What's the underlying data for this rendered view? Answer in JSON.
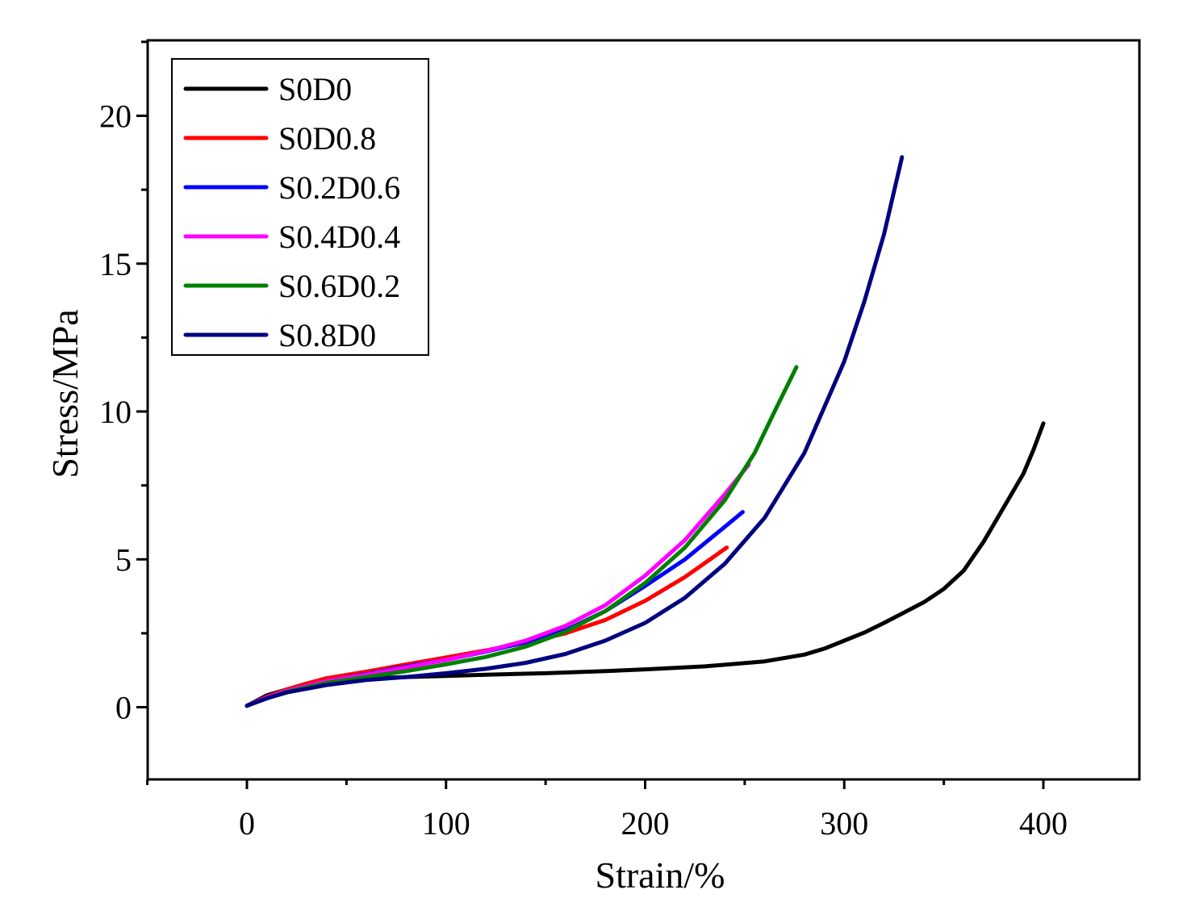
{
  "chart_data": {
    "type": "line",
    "xlabel": "Strain/%",
    "ylabel": "Stress/MPa",
    "xlim": [
      -50,
      450
    ],
    "ylim": [
      -2.4,
      22.5
    ],
    "x_ticks": [
      0,
      100,
      200,
      300,
      400
    ],
    "y_ticks": [
      0,
      5,
      10,
      15,
      20
    ],
    "x_tick_labels": [
      "0",
      "100",
      "200",
      "300",
      "400"
    ],
    "y_tick_labels": [
      "0",
      "5",
      "10",
      "15",
      "20"
    ],
    "grid": false,
    "legend_position": "top-left",
    "series": [
      {
        "name": "S0D0",
        "color": "#000000",
        "points": [
          [
            0,
            0.05
          ],
          [
            10,
            0.4
          ],
          [
            20,
            0.6
          ],
          [
            30,
            0.75
          ],
          [
            40,
            0.85
          ],
          [
            50,
            0.92
          ],
          [
            60,
            0.97
          ],
          [
            80,
            1.02
          ],
          [
            100,
            1.06
          ],
          [
            120,
            1.1
          ],
          [
            150,
            1.15
          ],
          [
            180,
            1.22
          ],
          [
            200,
            1.28
          ],
          [
            230,
            1.38
          ],
          [
            260,
            1.55
          ],
          [
            280,
            1.78
          ],
          [
            290,
            1.98
          ],
          [
            300,
            2.25
          ],
          [
            310,
            2.52
          ],
          [
            320,
            2.85
          ],
          [
            330,
            3.2
          ],
          [
            340,
            3.55
          ],
          [
            350,
            4.0
          ],
          [
            360,
            4.62
          ],
          [
            370,
            5.6
          ],
          [
            380,
            6.75
          ],
          [
            390,
            7.9
          ],
          [
            395,
            8.7
          ],
          [
            400,
            9.6
          ]
        ]
      },
      {
        "name": "S0D0.8",
        "color": "#ff0000",
        "points": [
          [
            0,
            0.05
          ],
          [
            10,
            0.35
          ],
          [
            20,
            0.6
          ],
          [
            30,
            0.8
          ],
          [
            40,
            0.98
          ],
          [
            60,
            1.2
          ],
          [
            80,
            1.45
          ],
          [
            100,
            1.68
          ],
          [
            120,
            1.92
          ],
          [
            140,
            2.18
          ],
          [
            160,
            2.5
          ],
          [
            180,
            2.95
          ],
          [
            200,
            3.6
          ],
          [
            220,
            4.4
          ],
          [
            241,
            5.4
          ]
        ]
      },
      {
        "name": "S0.2D0.6",
        "color": "#0000ff",
        "points": [
          [
            0,
            0.05
          ],
          [
            10,
            0.33
          ],
          [
            20,
            0.55
          ],
          [
            40,
            0.88
          ],
          [
            60,
            1.12
          ],
          [
            80,
            1.38
          ],
          [
            100,
            1.6
          ],
          [
            120,
            1.88
          ],
          [
            140,
            2.2
          ],
          [
            160,
            2.6
          ],
          [
            180,
            3.25
          ],
          [
            200,
            4.1
          ],
          [
            220,
            5.0
          ],
          [
            240,
            6.1
          ],
          [
            249,
            6.6
          ]
        ]
      },
      {
        "name": "S0.4D0.4",
        "color": "#ff00ff",
        "points": [
          [
            0,
            0.05
          ],
          [
            10,
            0.33
          ],
          [
            20,
            0.55
          ],
          [
            40,
            0.88
          ],
          [
            60,
            1.1
          ],
          [
            80,
            1.35
          ],
          [
            100,
            1.6
          ],
          [
            120,
            1.9
          ],
          [
            140,
            2.25
          ],
          [
            160,
            2.75
          ],
          [
            180,
            3.45
          ],
          [
            200,
            4.45
          ],
          [
            220,
            5.65
          ],
          [
            240,
            7.2
          ],
          [
            252,
            8.2
          ]
        ]
      },
      {
        "name": "S0.6D0.2",
        "color": "#008000",
        "points": [
          [
            0,
            0.05
          ],
          [
            10,
            0.3
          ],
          [
            20,
            0.52
          ],
          [
            40,
            0.82
          ],
          [
            60,
            1.02
          ],
          [
            80,
            1.22
          ],
          [
            100,
            1.45
          ],
          [
            120,
            1.7
          ],
          [
            140,
            2.05
          ],
          [
            160,
            2.55
          ],
          [
            180,
            3.25
          ],
          [
            200,
            4.2
          ],
          [
            220,
            5.4
          ],
          [
            240,
            7.0
          ],
          [
            255,
            8.6
          ],
          [
            265,
            10.0
          ],
          [
            276,
            11.5
          ]
        ]
      },
      {
        "name": "S0.8D0",
        "color": "#000080",
        "points": [
          [
            0,
            0.05
          ],
          [
            10,
            0.3
          ],
          [
            20,
            0.5
          ],
          [
            40,
            0.75
          ],
          [
            60,
            0.92
          ],
          [
            80,
            1.02
          ],
          [
            100,
            1.15
          ],
          [
            120,
            1.3
          ],
          [
            140,
            1.5
          ],
          [
            160,
            1.8
          ],
          [
            180,
            2.25
          ],
          [
            200,
            2.85
          ],
          [
            220,
            3.7
          ],
          [
            240,
            4.85
          ],
          [
            260,
            6.4
          ],
          [
            280,
            8.6
          ],
          [
            300,
            11.7
          ],
          [
            310,
            13.7
          ],
          [
            320,
            16.0
          ],
          [
            329,
            18.6
          ]
        ]
      }
    ]
  }
}
